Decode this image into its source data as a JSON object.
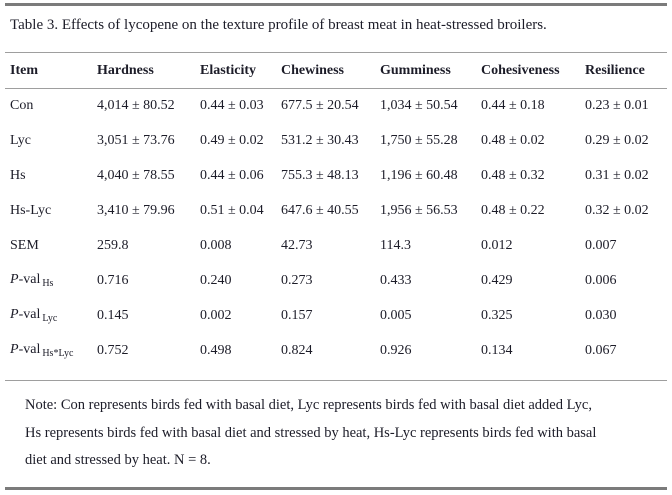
{
  "title": "Table 3. Effects of lycopene on the texture profile of breast meat in heat-stressed broilers.",
  "table": {
    "columns": [
      "Item",
      "Hardness",
      "Elasticity",
      "Chewiness",
      "Gumminess",
      "Cohesiveness",
      "Resilience"
    ],
    "rows": [
      {
        "label": "Con",
        "values": [
          "4,014 ± 80.52",
          "0.44 ± 0.03",
          "677.5 ± 20.54",
          "1,034 ± 50.54",
          "0.44 ± 0.18",
          "0.23 ± 0.01"
        ]
      },
      {
        "label": "Lyc",
        "values": [
          "3,051 ± 73.76",
          "0.49 ± 0.02",
          "531.2 ± 30.43",
          "1,750 ± 55.28",
          "0.48 ± 0.02",
          "0.29 ± 0.02"
        ]
      },
      {
        "label": "Hs",
        "values": [
          "4,040 ± 78.55",
          "0.44 ± 0.06",
          "755.3 ± 48.13",
          "1,196 ± 60.48",
          "0.48 ± 0.32",
          "0.31 ± 0.02"
        ]
      },
      {
        "label": "Hs-Lyc",
        "values": [
          "3,410 ± 79.96",
          "0.51 ± 0.04",
          "647.6 ± 40.55",
          "1,956 ± 56.53",
          "0.48 ± 0.22",
          "0.32 ± 0.02"
        ]
      },
      {
        "label": "SEM",
        "values": [
          "259.8",
          "0.008",
          "42.73",
          "114.3",
          "0.012",
          "0.007"
        ]
      },
      {
        "label_italic": "P",
        "label_rest": "-val",
        "label_sub": "Hs",
        "values": [
          "0.716",
          "0.240",
          "0.273",
          "0.433",
          "0.429",
          "0.006"
        ]
      },
      {
        "label_italic": "P",
        "label_rest": "-val",
        "label_sub": "Lyc",
        "values": [
          "0.145",
          "0.002",
          "0.157",
          "0.005",
          "0.325",
          "0.030"
        ]
      },
      {
        "label_italic": "P",
        "label_rest": "-val",
        "label_sub": "Hs*Lyc",
        "values": [
          "0.752",
          "0.498",
          "0.824",
          "0.926",
          "0.134",
          "0.067"
        ]
      }
    ]
  },
  "note": {
    "lines": [
      "Note: Con represents birds fed with basal diet, Lyc represents birds fed with basal diet added Lyc,",
      "Hs represents birds fed with basal diet and stressed by heat, Hs-Lyc represents birds fed with basal",
      "diet and stressed by heat. N = 8."
    ]
  },
  "colors": {
    "text": "#1c1c28",
    "rule_thick": "#7b7b7b",
    "rule_thin": "#9e9e9e",
    "background": "#ffffff"
  }
}
